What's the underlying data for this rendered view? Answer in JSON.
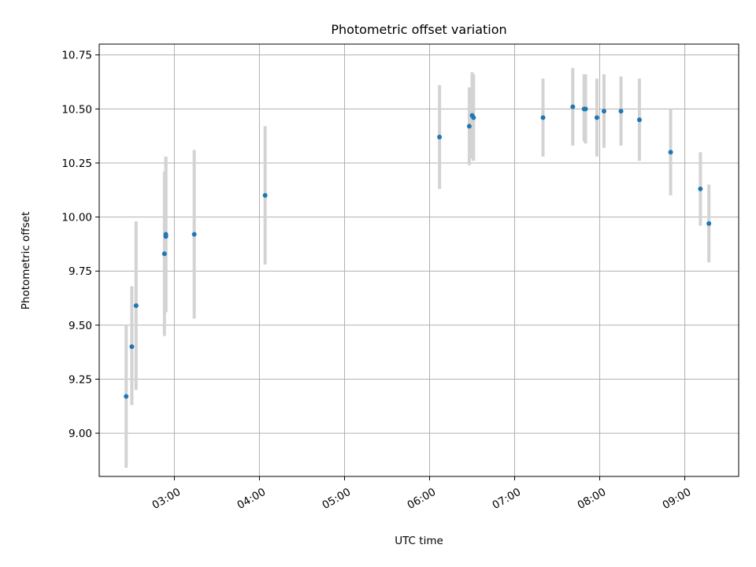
{
  "chart_data": {
    "type": "scatter",
    "title": "Photometric offset variation",
    "xlabel": "UTC time",
    "ylabel": "Photometric offset",
    "x_type": "time",
    "xlim": [
      "02:07",
      "09:38"
    ],
    "ylim": [
      8.8,
      10.8
    ],
    "x_ticks": [
      "03:00",
      "04:00",
      "05:00",
      "06:00",
      "07:00",
      "08:00",
      "09:00"
    ],
    "y_ticks": [
      "9.00",
      "9.25",
      "9.50",
      "9.75",
      "10.00",
      "10.25",
      "10.50",
      "10.75"
    ],
    "grid": true,
    "legend": "none",
    "point_color": "#1f77b4",
    "errorbar_color": "#d3d3d3",
    "series": [
      {
        "points": [
          {
            "x": "02:26",
            "y": 9.17,
            "err_low": 0.33,
            "err_high": 0.33
          },
          {
            "x": "02:30",
            "y": 9.4,
            "err_low": 0.27,
            "err_high": 0.28
          },
          {
            "x": "02:33",
            "y": 9.59,
            "err_low": 0.39,
            "err_high": 0.39
          },
          {
            "x": "02:53",
            "y": 9.83,
            "err_low": 0.38,
            "err_high": 0.38
          },
          {
            "x": "02:54",
            "y": 9.91,
            "err_low": 0.35,
            "err_high": 0.35
          },
          {
            "x": "02:54",
            "y": 9.92,
            "err_low": 0.36,
            "err_high": 0.36
          },
          {
            "x": "03:14",
            "y": 9.92,
            "err_low": 0.39,
            "err_high": 0.39
          },
          {
            "x": "04:04",
            "y": 10.1,
            "err_low": 0.32,
            "err_high": 0.32
          },
          {
            "x": "06:07",
            "y": 10.37,
            "err_low": 0.24,
            "err_high": 0.24
          },
          {
            "x": "06:28",
            "y": 10.42,
            "err_low": 0.18,
            "err_high": 0.18
          },
          {
            "x": "06:30",
            "y": 10.47,
            "err_low": 0.2,
            "err_high": 0.2
          },
          {
            "x": "06:31",
            "y": 10.46,
            "err_low": 0.2,
            "err_high": 0.2
          },
          {
            "x": "07:20",
            "y": 10.46,
            "err_low": 0.18,
            "err_high": 0.18
          },
          {
            "x": "07:41",
            "y": 10.51,
            "err_low": 0.18,
            "err_high": 0.18
          },
          {
            "x": "07:49",
            "y": 10.5,
            "err_low": 0.15,
            "err_high": 0.16
          },
          {
            "x": "07:50",
            "y": 10.5,
            "err_low": 0.16,
            "err_high": 0.16
          },
          {
            "x": "07:58",
            "y": 10.46,
            "err_low": 0.18,
            "err_high": 0.18
          },
          {
            "x": "08:03",
            "y": 10.49,
            "err_low": 0.17,
            "err_high": 0.17
          },
          {
            "x": "08:15",
            "y": 10.49,
            "err_low": 0.16,
            "err_high": 0.16
          },
          {
            "x": "08:28",
            "y": 10.45,
            "err_low": 0.19,
            "err_high": 0.19
          },
          {
            "x": "08:50",
            "y": 10.3,
            "err_low": 0.2,
            "err_high": 0.2
          },
          {
            "x": "09:11",
            "y": 10.13,
            "err_low": 0.17,
            "err_high": 0.17
          },
          {
            "x": "09:17",
            "y": 9.97,
            "err_low": 0.18,
            "err_high": 0.18
          }
        ]
      }
    ]
  }
}
